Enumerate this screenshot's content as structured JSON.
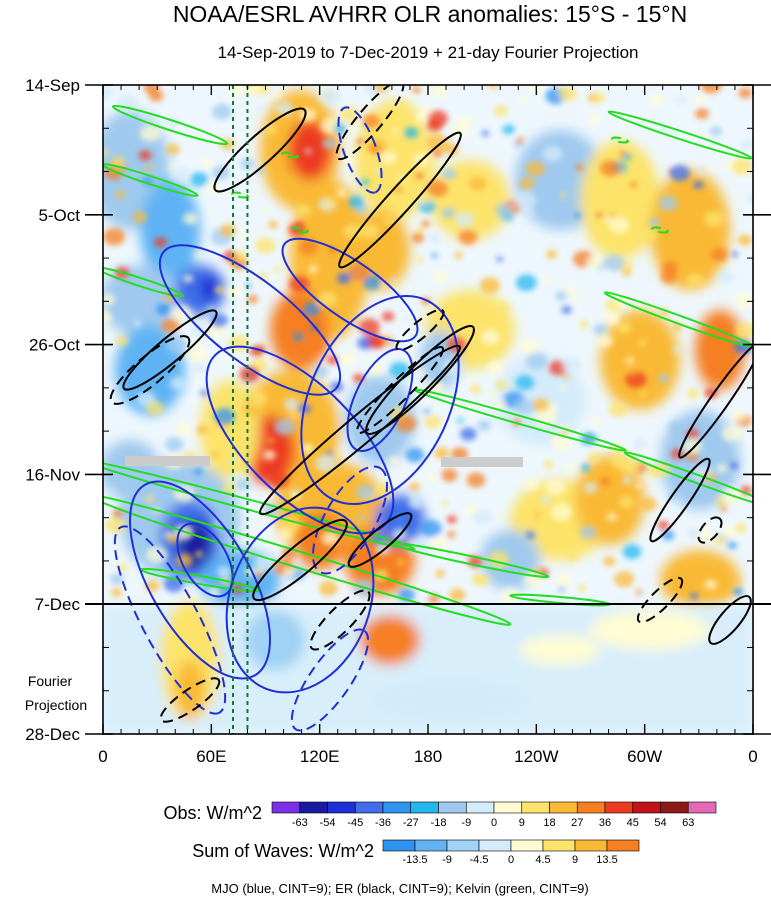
{
  "chart_data": {
    "type": "heatmap",
    "title": "NOAA/ESRL AVHRR OLR anomalies: 15°S - 15°N",
    "subtitle": "14-Sep-2019 to 7-Dec-2019 + 21-day Fourier Projection",
    "x_ticks": [
      "0",
      "60E",
      "120E",
      "180",
      "120W",
      "60W",
      "0"
    ],
    "x_tick_lon": [
      0,
      60,
      120,
      180,
      240,
      300,
      360
    ],
    "y_ticks": [
      "14-Sep",
      "5-Oct",
      "26-Oct",
      "16-Nov",
      "7-Dec",
      "28-Dec"
    ],
    "y_tick_day": [
      0,
      21,
      42,
      63,
      84,
      105
    ],
    "obs_end_label": "7-Dec",
    "projection_label": [
      "Fourier",
      "Projection"
    ],
    "obs_colorbar": {
      "label": "Obs: W/m^2",
      "ticks": [
        "-63",
        "-54",
        "-45",
        "-36",
        "-27",
        "-18",
        "-9",
        "0",
        "9",
        "18",
        "27",
        "36",
        "45",
        "54",
        "63"
      ],
      "colors": [
        "#7d2ee8",
        "#1a1aa0",
        "#1f2fd6",
        "#3f6ee8",
        "#2f93f0",
        "#23b7ef",
        "#9fc9ee",
        "#d4ebfa",
        "#fffcd4",
        "#fce36b",
        "#f9b935",
        "#f57f23",
        "#ed3b20",
        "#c0121a",
        "#8c1a14",
        "#e26ab5"
      ]
    },
    "waves_colorbar": {
      "label": "Sum of Waves: W/m^2",
      "ticks": [
        "-13.5",
        "-9",
        "-4.5",
        "0",
        "4.5",
        "9",
        "13.5"
      ],
      "colors": [
        "#2f93f0",
        "#5fb3f4",
        "#9fd2f5",
        "#d4ebfa",
        "#fffcd4",
        "#fce36b",
        "#f9b935",
        "#f57f23"
      ]
    },
    "waves": [
      {
        "name": "MJO",
        "color": "#1f2fd6"
      },
      {
        "name": "ER",
        "color": "#000000"
      },
      {
        "name": "Kelvin",
        "color": "#22dd22"
      }
    ],
    "legend_text": "MJO (blue, CINT=9); ER (black, CINT=9); Kelvin (green, CINT=9)",
    "vertical_lines_lon": [
      72,
      80
    ]
  }
}
